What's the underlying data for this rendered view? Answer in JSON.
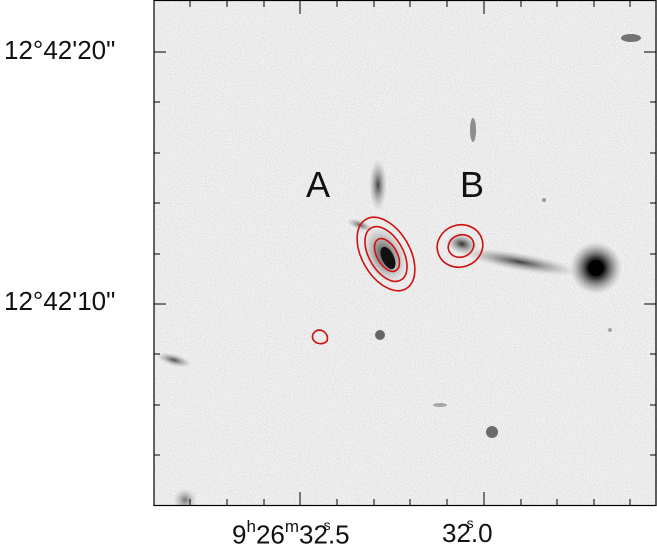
{
  "panel": {
    "y_axis": {
      "tick_labels": [
        "12°42'20\"",
        "12°42'10\""
      ]
    },
    "x_axis": {
      "tick_labels": [
        {
          "hours": "9",
          "h_unit": "h",
          "minutes": "26",
          "m_unit": "m",
          "seconds": "32.5",
          "s_unit": "s"
        },
        {
          "seconds": "32.0",
          "s_unit": "s"
        }
      ]
    },
    "sources": [
      {
        "label": "A"
      },
      {
        "label": "B"
      }
    ],
    "contour_color": "#d01010",
    "frame_color": "#000000",
    "background_color": "#f2f2f2"
  }
}
